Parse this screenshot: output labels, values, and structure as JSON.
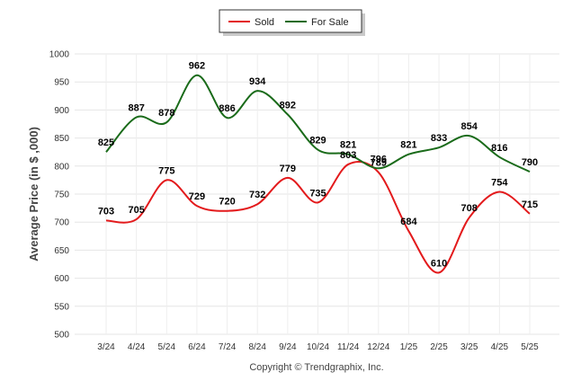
{
  "chart_data": {
    "type": "line",
    "categories": [
      "3/24",
      "4/24",
      "5/24",
      "6/24",
      "7/24",
      "8/24",
      "9/24",
      "10/24",
      "11/24",
      "12/24",
      "1/25",
      "2/25",
      "3/25",
      "4/25",
      "5/25"
    ],
    "series": [
      {
        "name": "Sold",
        "color": "#e31a1c",
        "values": [
          703,
          705,
          775,
          729,
          720,
          732,
          779,
          735,
          803,
          789,
          684,
          610,
          708,
          754,
          715
        ]
      },
      {
        "name": "For Sale",
        "color": "#1a6b1a",
        "values": [
          825,
          887,
          878,
          962,
          886,
          934,
          892,
          829,
          821,
          796,
          821,
          833,
          854,
          816,
          790
        ]
      }
    ],
    "ylabel": "Average Price (in $ ,000)",
    "ylim": [
      500,
      1000
    ],
    "yticks": [
      500,
      550,
      600,
      650,
      700,
      750,
      800,
      850,
      900,
      950,
      1000
    ],
    "grid": true,
    "legend": "top-center",
    "footer": "Copyright © Trendgraphix, Inc."
  }
}
